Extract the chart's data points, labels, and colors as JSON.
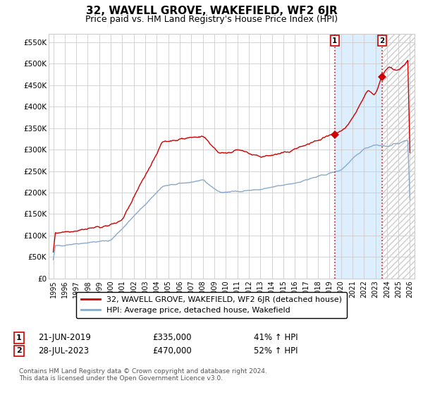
{
  "title": "32, WAVELL GROVE, WAKEFIELD, WF2 6JR",
  "subtitle": "Price paid vs. HM Land Registry's House Price Index (HPI)",
  "ylim": [
    0,
    570000
  ],
  "yticks": [
    0,
    50000,
    100000,
    150000,
    200000,
    250000,
    300000,
    350000,
    400000,
    450000,
    500000,
    550000
  ],
  "ytick_labels": [
    "£0",
    "£50K",
    "£100K",
    "£150K",
    "£200K",
    "£250K",
    "£300K",
    "£350K",
    "£400K",
    "£450K",
    "£500K",
    "£550K"
  ],
  "xlim_left": 1994.6,
  "xlim_right": 2026.4,
  "red_line_color": "#cc0000",
  "blue_line_color": "#88aacc",
  "background_color": "#ffffff",
  "grid_color": "#cccccc",
  "shaded_color": "#ddeeff",
  "hatch_color": "#cccccc",
  "transaction1_date": 2019.47,
  "transaction1_value": 335000,
  "transaction2_date": 2023.57,
  "transaction2_value": 470000,
  "legend_line1": "32, WAVELL GROVE, WAKEFIELD, WF2 6JR (detached house)",
  "legend_line2": "HPI: Average price, detached house, Wakefield",
  "ann1_date": "21-JUN-2019",
  "ann1_price": "£335,000",
  "ann1_hpi": "41% ↑ HPI",
  "ann2_date": "28-JUL-2023",
  "ann2_price": "£470,000",
  "ann2_hpi": "52% ↑ HPI",
  "footer": "Contains HM Land Registry data © Crown copyright and database right 2024.\nThis data is licensed under the Open Government Licence v3.0.",
  "title_fontsize": 11,
  "subtitle_fontsize": 9,
  "tick_fontsize": 7.5,
  "legend_fontsize": 8,
  "ann_fontsize": 8.5,
  "footer_fontsize": 6.5
}
